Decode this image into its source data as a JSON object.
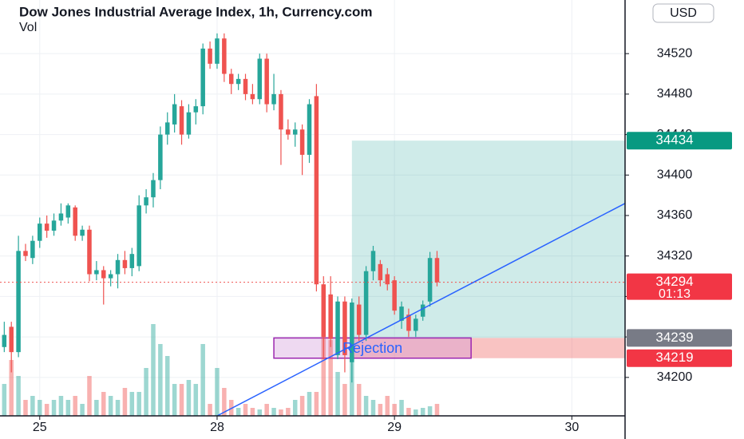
{
  "chart_data": {
    "type": "candlestick",
    "title": "Dow Jones Industrial Average Index, 1h, Currency.com",
    "volume_label": "Vol",
    "currency": "USD",
    "up_color": "#26a69a",
    "down_color": "#ef5350",
    "open": [
      34230,
      34250,
      34225,
      34325,
      34318,
      34335,
      34352,
      34345,
      34355,
      34358,
      34368,
      34340,
      34346,
      34302,
      34306,
      34298,
      34302,
      34316,
      34308,
      34310,
      34370,
      34378,
      34395,
      34440,
      34450,
      34468,
      34440,
      34462,
      34468,
      34525,
      34510,
      34535,
      34500,
      34490,
      34495,
      34480,
      34475,
      34515,
      34470,
      34480,
      34445,
      34440,
      34445,
      34420,
      34478,
      34292,
      34282,
      34222,
      34275,
      34215,
      34272,
      34242,
      34305,
      34312,
      34302,
      34296,
      34256,
      34262,
      34246,
      34260,
      34275,
      34318
    ],
    "high": [
      34255,
      34255,
      34340,
      34332,
      34340,
      34358,
      34360,
      34362,
      34372,
      34372,
      34370,
      34350,
      34350,
      34315,
      34310,
      34306,
      34322,
      34325,
      34328,
      34380,
      34386,
      34402,
      34448,
      34462,
      34480,
      34474,
      34470,
      34475,
      34530,
      34532,
      34540,
      34540,
      34505,
      34500,
      34500,
      34490,
      34520,
      34520,
      34500,
      34484,
      34455,
      34452,
      34450,
      34475,
      34490,
      34300,
      34300,
      34280,
      34280,
      34278,
      34280,
      34310,
      34330,
      34316,
      34308,
      34300,
      34275,
      34268,
      34262,
      34276,
      34324,
      34325
    ],
    "low": [
      34225,
      34205,
      34220,
      34315,
      34312,
      34328,
      34338,
      34340,
      34350,
      34352,
      34335,
      34335,
      34295,
      34296,
      34272,
      34290,
      34288,
      34302,
      34300,
      34305,
      34362,
      34368,
      34386,
      34430,
      34442,
      34430,
      34436,
      34450,
      34460,
      34505,
      34505,
      34492,
      34480,
      34484,
      34474,
      34470,
      34470,
      34462,
      34464,
      34410,
      34435,
      34428,
      34400,
      34412,
      34285,
      34218,
      34230,
      34218,
      34205,
      34195,
      34236,
      34236,
      34296,
      34290,
      34286,
      34262,
      34248,
      34240,
      34240,
      34256,
      34270,
      34290
    ],
    "close": [
      34242,
      34225,
      34325,
      34320,
      34335,
      34352,
      34345,
      34355,
      34362,
      34370,
      34340,
      34346,
      34302,
      34306,
      34298,
      34302,
      34316,
      34308,
      34322,
      34370,
      34378,
      34395,
      34440,
      34452,
      34470,
      34440,
      34462,
      34468,
      34525,
      34510,
      34535,
      34500,
      34490,
      34495,
      34480,
      34475,
      34515,
      34470,
      34480,
      34445,
      34440,
      34445,
      34420,
      34470,
      34292,
      34240,
      34238,
      34275,
      34222,
      34274,
      34242,
      34305,
      34325,
      34296,
      34292,
      34266,
      34270,
      34246,
      34258,
      34272,
      34318,
      34294
    ],
    "volume": [
      40,
      70,
      50,
      20,
      25,
      20,
      15,
      20,
      25,
      20,
      25,
      15,
      50,
      20,
      30,
      25,
      20,
      35,
      30,
      30,
      60,
      115,
      90,
      75,
      40,
      40,
      45,
      40,
      90,
      15,
      60,
      35,
      20,
      10,
      15,
      10,
      8,
      15,
      10,
      8,
      10,
      20,
      25,
      30,
      30,
      130,
      95,
      55,
      40,
      75,
      40,
      25,
      20,
      15,
      25,
      15,
      20,
      10,
      8,
      10,
      12,
      15
    ],
    "xlim": [
      -0.6,
      87.5
    ],
    "xticks": [
      {
        "value": 5,
        "label": "25"
      },
      {
        "value": 30,
        "label": "28"
      },
      {
        "value": 55,
        "label": "29"
      },
      {
        "value": 80,
        "label": "30"
      }
    ],
    "ylim": [
      34162,
      34573
    ],
    "yticks": [
      34200,
      34240,
      34280,
      34320,
      34360,
      34400,
      34440,
      34480,
      34520
    ],
    "grid": true,
    "annotations": {
      "position": {
        "start": 49,
        "entry": 34239,
        "target": 34434,
        "stop": 34219
      },
      "zone": {
        "start": 38,
        "end": 65.8,
        "low": 34219,
        "high": 34239,
        "label": "Rejection"
      },
      "trendline": {
        "start": [
          30,
          34162
        ],
        "end": [
          87.5,
          34372
        ]
      },
      "last_price": 34294,
      "countdown": "01:13"
    }
  }
}
